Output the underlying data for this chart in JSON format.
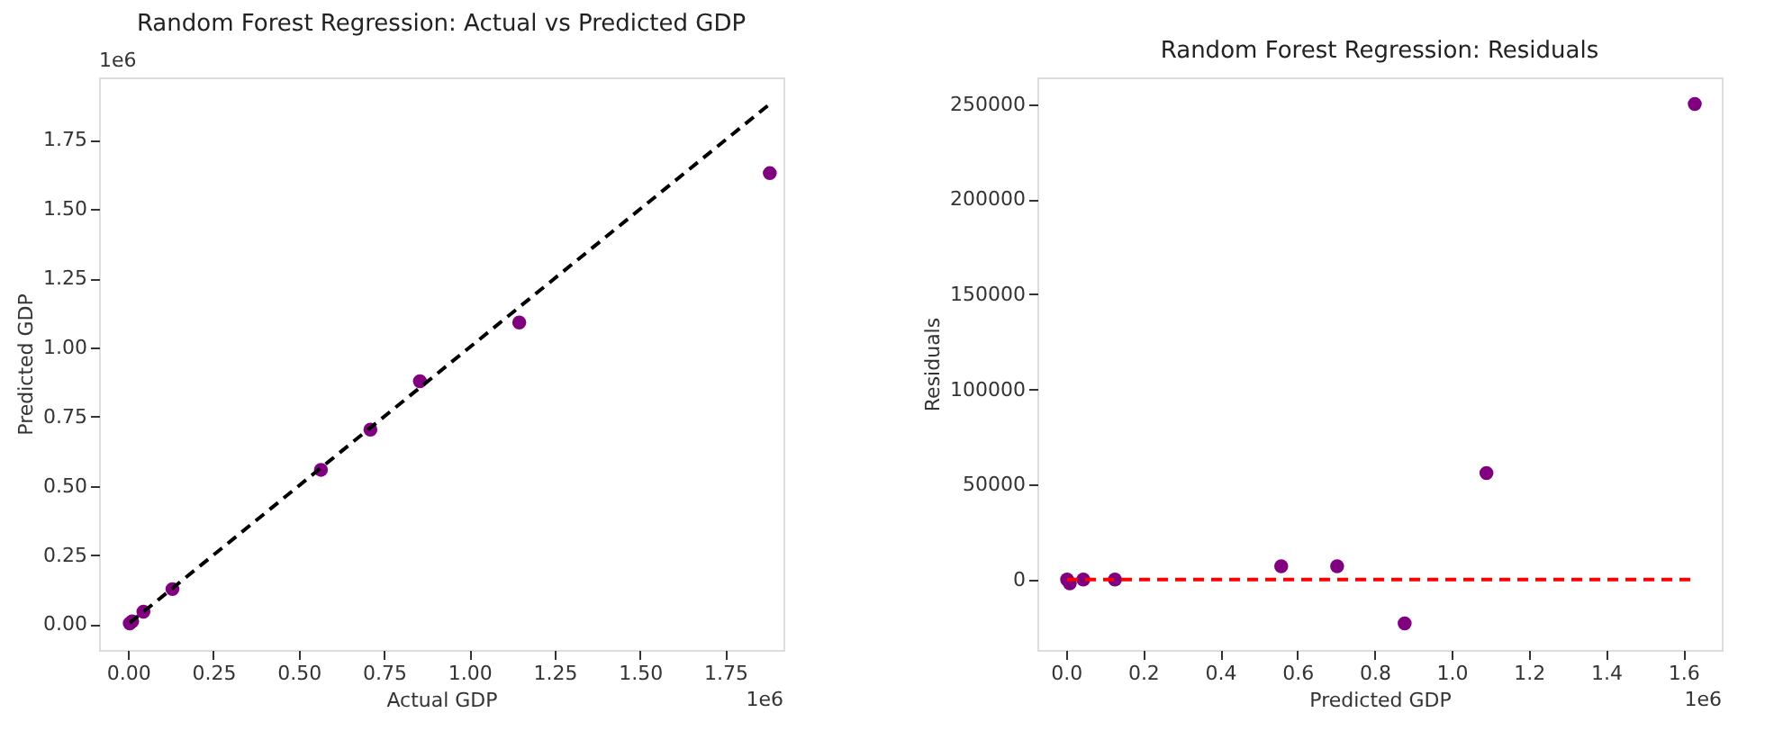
{
  "chart_data": [
    {
      "type": "scatter",
      "title": "Random Forest Regression: Actual vs Predicted GDP",
      "xlabel": "Actual GDP",
      "ylabel": "Predicted GDP",
      "x": [
        0.005,
        0.012,
        0.045,
        0.13,
        0.565,
        0.71,
        0.855,
        1.146,
        1.88
      ],
      "series": [
        {
          "color": "#800080",
          "marker": "circle",
          "values": [
            0.003,
            0.01,
            0.045,
            0.127,
            0.558,
            0.703,
            0.878,
            1.09,
            1.63
          ]
        },
        {
          "type": "line",
          "color": "#000000",
          "line_style": "dashed",
          "marker": "none",
          "x": [
            0.005,
            1.88
          ],
          "values": [
            0.005,
            1.88
          ]
        }
      ],
      "xlim": [
        -0.085,
        1.92
      ],
      "ylim": [
        -0.093,
        1.976
      ],
      "xticks": [
        {
          "value": 0,
          "label": "0.00"
        },
        0.25,
        {
          "value": 0.5,
          "label": "0.50"
        },
        0.75,
        {
          "value": 1,
          "label": "1.00"
        },
        1.25,
        {
          "value": 1.5,
          "label": "1.50"
        },
        1.75
      ],
      "yticks": [
        {
          "value": 0,
          "label": "0.00"
        },
        0.25,
        {
          "value": 0.5,
          "label": "0.50"
        },
        0.75,
        {
          "value": 1,
          "label": "1.00"
        },
        1.25,
        {
          "value": 1.5,
          "label": "1.50"
        },
        1.75
      ],
      "annotations": [
        "1e6",
        "1e6"
      ],
      "grid": false
    },
    {
      "type": "scatter",
      "title": "Random Forest Regression: Residuals",
      "xlabel": "Predicted GDP",
      "ylabel": "Residuals",
      "x": [
        0.003,
        0.01,
        0.045,
        0.127,
        0.558,
        0.703,
        0.878,
        1.09,
        1.63
      ],
      "series": [
        {
          "color": "#800080",
          "marker": "circle",
          "values": [
            0,
            -2000,
            0,
            0,
            7000,
            7000,
            -23000,
            56000,
            250000
          ]
        },
        {
          "type": "line",
          "color": "#ff0000",
          "line_style": "dashed",
          "marker": "none",
          "x": [
            0.003,
            1.63
          ],
          "values": [
            0,
            0
          ]
        }
      ],
      "xlim": [
        -0.074,
        1.7
      ],
      "ylim": [
        -37000,
        264000
      ],
      "xticks": [
        {
          "value": 0,
          "label": "0.0"
        },
        0.2,
        0.4,
        0.6,
        0.8,
        {
          "value": 1,
          "label": "1.0"
        },
        1.2,
        1.4,
        1.6
      ],
      "yticks": [
        0,
        50000,
        100000,
        150000,
        200000,
        250000
      ],
      "annotations": [
        "1e6"
      ],
      "grid": false
    }
  ]
}
